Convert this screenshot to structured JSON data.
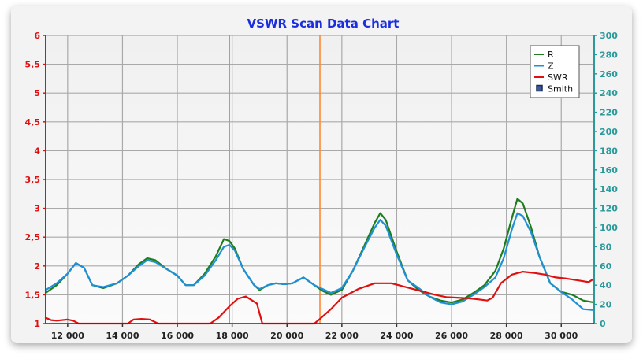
{
  "chart_data": {
    "type": "line",
    "title": "VSWR Scan Data Chart",
    "xlabel": "",
    "ylabel_left": "",
    "ylabel_right": "",
    "xlim": [
      11200,
      31200
    ],
    "ylim_left": [
      1,
      6
    ],
    "ylim_right": [
      0,
      300
    ],
    "x_ticks": [
      12000,
      14000,
      16000,
      18000,
      20000,
      22000,
      24000,
      26000,
      28000,
      30000
    ],
    "x_tick_labels": [
      "12 000",
      "14 000",
      "16 000",
      "18 000",
      "20 000",
      "22 000",
      "24 000",
      "26 000",
      "28 000",
      "30 000"
    ],
    "y_left_ticks": [
      1,
      1.5,
      2,
      2.5,
      3,
      3.5,
      4,
      4.5,
      5,
      5.5,
      6
    ],
    "y_left_tick_labels": [
      "1",
      "1,5",
      "2",
      "2,5",
      "3",
      "3,5",
      "4",
      "4,5",
      "5",
      "5,5",
      "6"
    ],
    "y_right_ticks": [
      0,
      20,
      40,
      60,
      80,
      100,
      120,
      140,
      160,
      180,
      200,
      220,
      240,
      260,
      280,
      300
    ],
    "y_right_tick_labels": [
      "0",
      "20",
      "40",
      "60",
      "80",
      "100",
      "120",
      "140",
      "160",
      "180",
      "200",
      "220",
      "240",
      "260",
      "280",
      "300"
    ],
    "grid": true,
    "legend_position": "top-right",
    "legend": [
      {
        "label": "R",
        "color": "#1e7d1e",
        "marker": "line"
      },
      {
        "label": "Z",
        "color": "#1f8fd6",
        "marker": "line"
      },
      {
        "label": "SWR",
        "color": "#e01010",
        "marker": "line"
      },
      {
        "label": "Smith",
        "color": "#1c2a55",
        "marker": "box"
      }
    ],
    "markers": [
      {
        "x": 17900,
        "color": "#ee66ee"
      },
      {
        "x": 21200,
        "color": "#ff8833"
      }
    ],
    "series": [
      {
        "name": "R",
        "axis": "right",
        "color": "#1e7d1e",
        "x": [
          11200,
          11600,
          12000,
          12300,
          12600,
          12900,
          13300,
          13800,
          14200,
          14600,
          14900,
          15200,
          15600,
          16000,
          16300,
          16600,
          17000,
          17400,
          17700,
          17900,
          18100,
          18400,
          18800,
          19000,
          19300,
          19600,
          19900,
          20200,
          20600,
          21000,
          21300,
          21600,
          22000,
          22400,
          22800,
          23200,
          23400,
          23600,
          24000,
          24400,
          24800,
          25200,
          25600,
          26000,
          26400,
          26800,
          27200,
          27600,
          27900,
          28200,
          28400,
          28600,
          28900,
          29200,
          29600,
          30000,
          30400,
          30800,
          31200
        ],
        "values": [
          32,
          40,
          52,
          63,
          58,
          40,
          37,
          42,
          50,
          62,
          68,
          66,
          57,
          50,
          40,
          40,
          52,
          70,
          88,
          86,
          78,
          57,
          40,
          35,
          40,
          42,
          41,
          42,
          48,
          40,
          34,
          30,
          35,
          55,
          80,
          105,
          115,
          108,
          75,
          45,
          35,
          28,
          24,
          22,
          25,
          32,
          40,
          55,
          78,
          110,
          130,
          125,
          100,
          70,
          42,
          33,
          30,
          24,
          22
        ]
      },
      {
        "name": "Z",
        "axis": "right",
        "color": "#1f8fd6",
        "x": [
          11200,
          11600,
          12000,
          12300,
          12600,
          12900,
          13300,
          13800,
          14200,
          14600,
          14900,
          15200,
          15600,
          16000,
          16300,
          16600,
          17000,
          17400,
          17700,
          17900,
          18100,
          18400,
          18800,
          19000,
          19300,
          19600,
          19900,
          20200,
          20600,
          21000,
          21300,
          21600,
          22000,
          22400,
          22800,
          23200,
          23400,
          23600,
          24000,
          24400,
          24800,
          25200,
          25600,
          26000,
          26400,
          26800,
          27200,
          27600,
          27900,
          28200,
          28400,
          28600,
          28900,
          29200,
          29600,
          30000,
          30400,
          30800,
          31200
        ],
        "values": [
          35,
          42,
          52,
          63,
          58,
          40,
          38,
          42,
          50,
          60,
          66,
          64,
          57,
          50,
          40,
          40,
          50,
          66,
          80,
          82,
          76,
          57,
          40,
          36,
          40,
          42,
          41,
          42,
          48,
          40,
          36,
          32,
          37,
          55,
          78,
          100,
          108,
          102,
          72,
          45,
          37,
          28,
          22,
          20,
          23,
          30,
          38,
          48,
          68,
          98,
          115,
          112,
          95,
          70,
          42,
          33,
          25,
          15,
          14
        ]
      },
      {
        "name": "SWR",
        "axis": "left",
        "color": "#e01010",
        "x": [
          11200,
          11400,
          11600,
          12000,
          12200,
          12400,
          12800,
          13400,
          13800,
          14200,
          14400,
          14700,
          15000,
          15300,
          15600,
          16000,
          16800,
          17200,
          17500,
          17900,
          18200,
          18500,
          18900,
          19100,
          19500,
          20000,
          20500,
          21000,
          21200,
          21600,
          22000,
          22600,
          23200,
          23800,
          24200,
          24600,
          25000,
          25400,
          25800,
          26200,
          26600,
          27000,
          27300,
          27500,
          27800,
          28200,
          28600,
          29000,
          29400,
          29800,
          30200,
          30600,
          31000,
          31200
        ],
        "values": [
          1.1,
          1.06,
          1.05,
          1.07,
          1.05,
          1.0,
          1.0,
          1.0,
          1.0,
          1.0,
          1.07,
          1.08,
          1.07,
          1.0,
          1.0,
          1.0,
          1.0,
          1.0,
          1.1,
          1.3,
          1.43,
          1.47,
          1.35,
          1.0,
          1.0,
          1.0,
          1.0,
          1.0,
          1.08,
          1.25,
          1.45,
          1.6,
          1.7,
          1.7,
          1.65,
          1.6,
          1.55,
          1.5,
          1.46,
          1.45,
          1.44,
          1.42,
          1.4,
          1.45,
          1.7,
          1.85,
          1.9,
          1.88,
          1.85,
          1.8,
          1.78,
          1.75,
          1.72,
          1.78
        ]
      }
    ]
  }
}
